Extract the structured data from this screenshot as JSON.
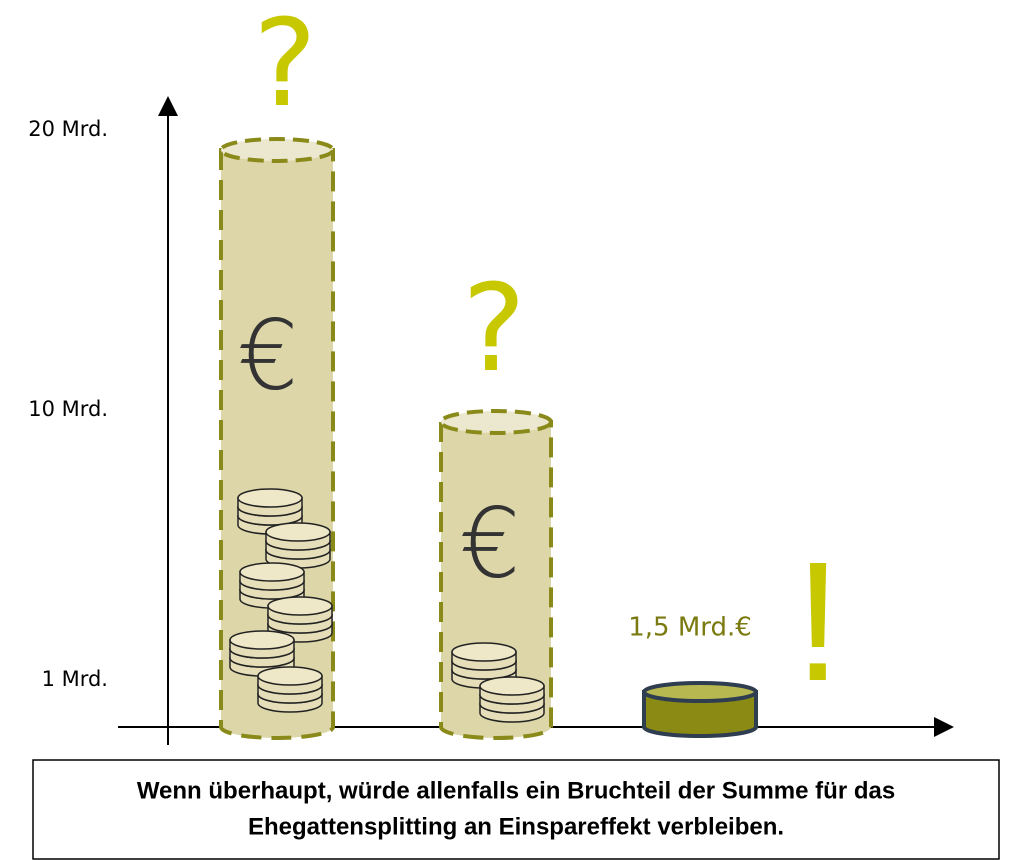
{
  "y_axis": {
    "labels": [
      "20 Mrd.",
      "10 Mrd.",
      "1 Mrd."
    ]
  },
  "columns": [
    {
      "marker": "?",
      "symbol": "€"
    },
    {
      "marker": "?",
      "symbol": "€"
    },
    {
      "label": "1,5 Mrd.€",
      "marker": "!"
    }
  ],
  "caption": {
    "lines": [
      "Wenn überhaupt, würde allenfalls ein Bruchteil der Summe für das",
      "Ehegattensplitting an Einspareffekt verbleiben."
    ]
  }
}
